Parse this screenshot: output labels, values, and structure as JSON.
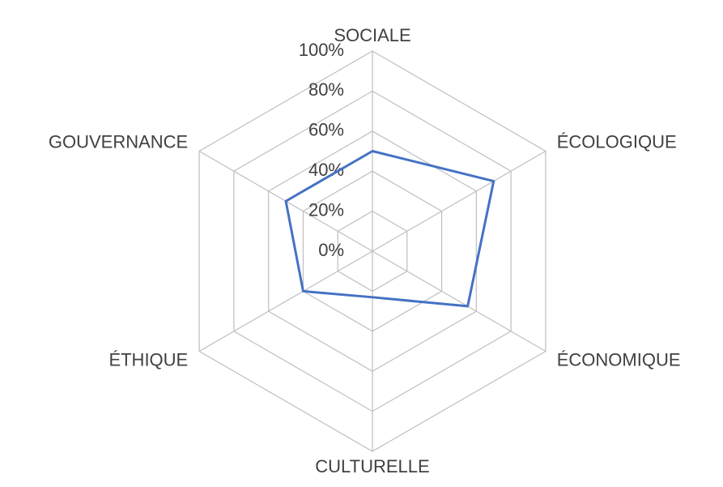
{
  "chart_data": {
    "type": "radar",
    "categories": [
      "SOCIALE",
      "ÉCOLOGIQUE",
      "ÉCONOMIQUE",
      "CULTURELLE",
      "ÉTHIQUE",
      "GOUVERNANCE"
    ],
    "values": [
      50,
      70,
      55,
      23,
      40,
      50
    ],
    "color": "#4472c4",
    "ylim": [
      0,
      100
    ],
    "yticks": [
      {
        "value": 0,
        "label": "0%"
      },
      {
        "value": 20,
        "label": "20%"
      },
      {
        "value": 40,
        "label": "40%"
      },
      {
        "value": 60,
        "label": "60%"
      },
      {
        "value": 80,
        "label": "80%"
      },
      {
        "value": 100,
        "label": "100%"
      }
    ],
    "grid": true
  }
}
